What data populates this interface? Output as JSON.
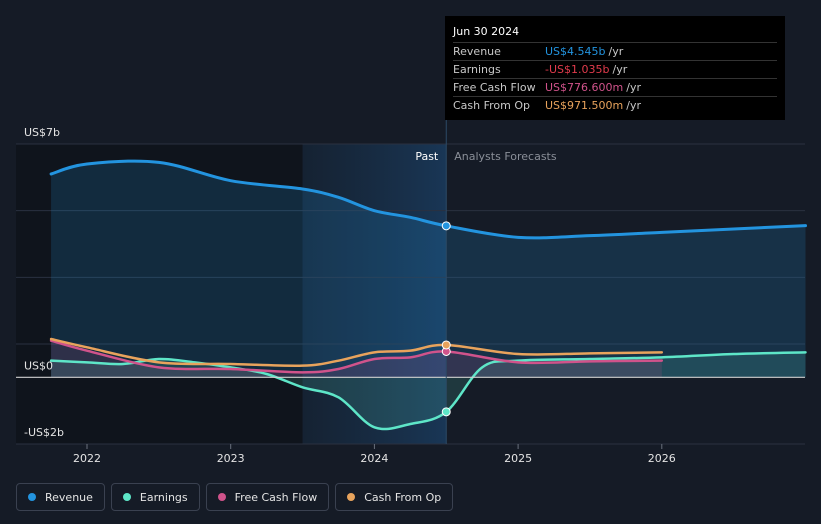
{
  "chart_data": {
    "type": "line",
    "title": "",
    "y_unit_labels": {
      "top": "US$7b",
      "zero": "US$0",
      "bottom": "-US$2b"
    },
    "ylim": [
      -2,
      7
    ],
    "x_ticks": [
      "2022",
      "2023",
      "2024",
      "2025",
      "2026"
    ],
    "x_tick_values": [
      2022,
      2023,
      2024,
      2025,
      2026
    ],
    "xlim": [
      2021.5,
      2027.0
    ],
    "forecast_start": 2024.5,
    "region_start": 2023.5,
    "regions": {
      "past": "Past",
      "forecast": "Analysts Forecasts"
    },
    "series": [
      {
        "name": "Revenue",
        "color": "#2394df",
        "fill": true,
        "points": [
          [
            2021.75,
            6.1
          ],
          [
            2022.0,
            6.4
          ],
          [
            2022.5,
            6.45
          ],
          [
            2023.0,
            5.9
          ],
          [
            2023.5,
            5.65
          ],
          [
            2023.75,
            5.4
          ],
          [
            2024.0,
            5.0
          ],
          [
            2024.25,
            4.8
          ],
          [
            2024.5,
            4.545
          ],
          [
            2025.0,
            4.2
          ],
          [
            2025.5,
            4.25
          ],
          [
            2026.0,
            4.35
          ],
          [
            2026.5,
            4.45
          ],
          [
            2027.0,
            4.55
          ]
        ]
      },
      {
        "name": "Earnings",
        "color": "#5ee6c8",
        "fill": true,
        "points": [
          [
            2021.75,
            0.5
          ],
          [
            2022.0,
            0.45
          ],
          [
            2022.25,
            0.4
          ],
          [
            2022.5,
            0.55
          ],
          [
            2022.75,
            0.45
          ],
          [
            2023.0,
            0.3
          ],
          [
            2023.25,
            0.1
          ],
          [
            2023.5,
            -0.3
          ],
          [
            2023.75,
            -0.6
          ],
          [
            2024.0,
            -1.5
          ],
          [
            2024.25,
            -1.4
          ],
          [
            2024.5,
            -1.035
          ],
          [
            2024.75,
            0.3
          ],
          [
            2025.0,
            0.5
          ],
          [
            2025.5,
            0.55
          ],
          [
            2026.0,
            0.6
          ],
          [
            2026.5,
            0.7
          ],
          [
            2027.0,
            0.75
          ]
        ]
      },
      {
        "name": "Free Cash Flow",
        "color": "#d0538b",
        "fill": true,
        "points": [
          [
            2021.75,
            1.1
          ],
          [
            2022.0,
            0.8
          ],
          [
            2022.5,
            0.3
          ],
          [
            2023.0,
            0.25
          ],
          [
            2023.5,
            0.15
          ],
          [
            2023.75,
            0.25
          ],
          [
            2024.0,
            0.55
          ],
          [
            2024.25,
            0.6
          ],
          [
            2024.5,
            0.7766
          ],
          [
            2025.0,
            0.45
          ],
          [
            2025.5,
            0.48
          ],
          [
            2026.0,
            0.5
          ]
        ]
      },
      {
        "name": "Cash From Op",
        "color": "#e8a35c",
        "fill": false,
        "points": [
          [
            2021.75,
            1.15
          ],
          [
            2022.0,
            0.9
          ],
          [
            2022.5,
            0.45
          ],
          [
            2023.0,
            0.4
          ],
          [
            2023.5,
            0.35
          ],
          [
            2023.75,
            0.5
          ],
          [
            2024.0,
            0.75
          ],
          [
            2024.25,
            0.8
          ],
          [
            2024.5,
            0.9715
          ],
          [
            2025.0,
            0.7
          ],
          [
            2025.5,
            0.72
          ],
          [
            2026.0,
            0.75
          ]
        ]
      }
    ],
    "highlight_x": 2024.5,
    "legend": [
      "Revenue",
      "Earnings",
      "Free Cash Flow",
      "Cash From Op"
    ]
  },
  "tooltip": {
    "date": "Jun 30 2024",
    "rows": [
      {
        "name": "Revenue",
        "value": "US$4.545b",
        "unit": "/yr",
        "color": "#2394df"
      },
      {
        "name": "Earnings",
        "value": "-US$1.035b",
        "unit": "/yr",
        "color": "#e23b4c"
      },
      {
        "name": "Free Cash Flow",
        "value": "US$776.600m",
        "unit": "/yr",
        "color": "#d0538b"
      },
      {
        "name": "Cash From Op",
        "value": "US$971.500m",
        "unit": "/yr",
        "color": "#e8a35c"
      }
    ]
  },
  "legend": {
    "items": [
      {
        "label": "Revenue",
        "color": "#2394df"
      },
      {
        "label": "Earnings",
        "color": "#5ee6c8"
      },
      {
        "label": "Free Cash Flow",
        "color": "#d0538b"
      },
      {
        "label": "Cash From Op",
        "color": "#e8a35c"
      }
    ]
  }
}
